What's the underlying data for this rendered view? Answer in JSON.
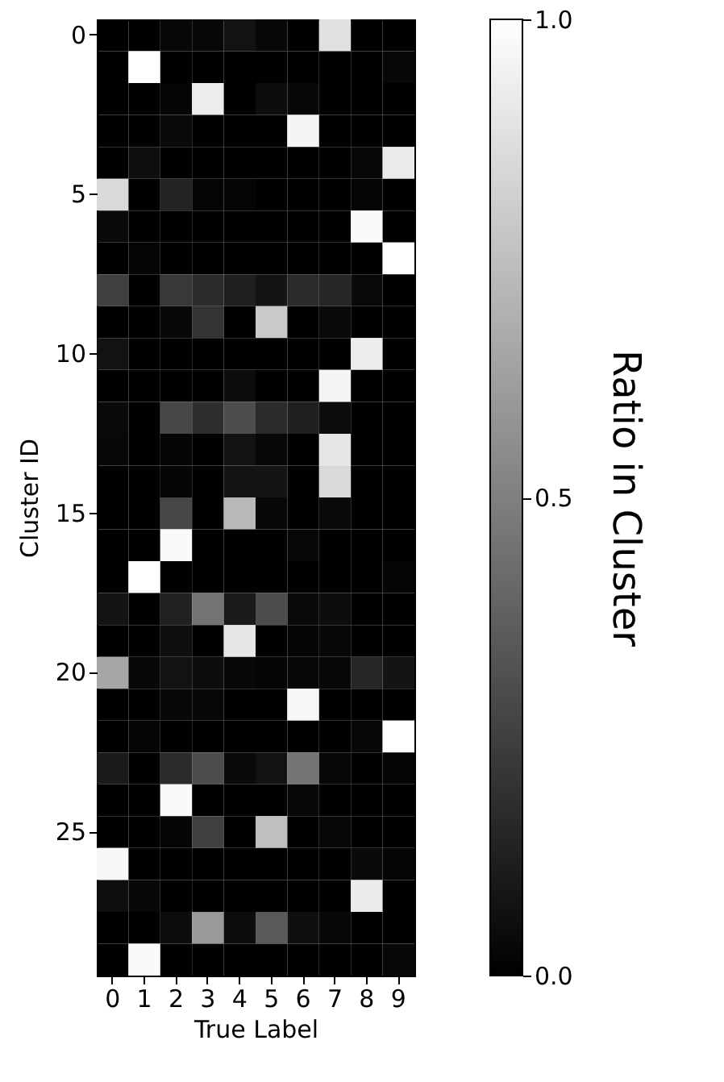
{
  "chart_data": {
    "type": "heatmap",
    "xlabel": "True Label",
    "ylabel": "Cluster ID",
    "clabel": "Ratio in Cluster",
    "categories": [
      "0",
      "1",
      "2",
      "3",
      "4",
      "5",
      "6",
      "7",
      "8",
      "9"
    ],
    "y_categories": [
      "0",
      null,
      null,
      null,
      null,
      "5",
      null,
      null,
      null,
      null,
      "10",
      null,
      null,
      null,
      null,
      "15",
      null,
      null,
      null,
      null,
      "20",
      null,
      null,
      null,
      null,
      "25",
      null,
      null,
      null,
      null
    ],
    "clim": [
      0,
      1
    ],
    "cticks": [
      {
        "value": 0,
        "label": "0.0"
      },
      {
        "value": 0.5,
        "label": "0.5"
      },
      {
        "value": 1,
        "label": "1.0"
      }
    ],
    "cells": [
      [
        0,
        0,
        0.03,
        0.03,
        0.07,
        0.03,
        0,
        0.88,
        0,
        0
      ],
      [
        0,
        1,
        0,
        0,
        0,
        0,
        0,
        0,
        0,
        0.03
      ],
      [
        0,
        0,
        0.02,
        0.93,
        0,
        0.05,
        0.03,
        0,
        0,
        0
      ],
      [
        0,
        0,
        0.04,
        0,
        0,
        0,
        0.96,
        0,
        0,
        0
      ],
      [
        0,
        0.06,
        0,
        0,
        0,
        0,
        0,
        0,
        0.03,
        0.92
      ],
      [
        0.85,
        0,
        0.14,
        0.02,
        0.02,
        0,
        0,
        0,
        0.02,
        0
      ],
      [
        0.04,
        0,
        0,
        0,
        0,
        0,
        0,
        0,
        0.98,
        0
      ],
      [
        0,
        0.02,
        0,
        0,
        0,
        0,
        0,
        0,
        0,
        1
      ],
      [
        0.25,
        0,
        0.22,
        0.17,
        0.12,
        0.08,
        0.17,
        0.15,
        0.04,
        0
      ],
      [
        0,
        0,
        0.03,
        0.2,
        0,
        0.79,
        0,
        0.04,
        0,
        0
      ],
      [
        0.07,
        0,
        0,
        0,
        0,
        0,
        0,
        0,
        0.93,
        0
      ],
      [
        0,
        0,
        0,
        0,
        0.05,
        0,
        0,
        0.96,
        0,
        0
      ],
      [
        0.04,
        0,
        0.28,
        0.18,
        0.3,
        0.17,
        0.12,
        0.05,
        0,
        0
      ],
      [
        0.03,
        0,
        0.02,
        0,
        0.07,
        0.03,
        0,
        0.9,
        0,
        0
      ],
      [
        0,
        0,
        0.02,
        0,
        0.08,
        0.08,
        0,
        0.85,
        0,
        0
      ],
      [
        0,
        0,
        0.28,
        0,
        0.72,
        0.03,
        0,
        0.04,
        0,
        0
      ],
      [
        0,
        0,
        0.98,
        0,
        0,
        0,
        0.03,
        0,
        0,
        0
      ],
      [
        0,
        1,
        0,
        0,
        0,
        0,
        0,
        0,
        0,
        0.02
      ],
      [
        0.08,
        0,
        0.13,
        0.45,
        0.1,
        0.3,
        0.04,
        0.05,
        0,
        0
      ],
      [
        0,
        0,
        0.06,
        0,
        0.9,
        0,
        0.02,
        0.03,
        0,
        0
      ],
      [
        0.65,
        0.03,
        0.07,
        0.05,
        0.03,
        0.02,
        0.03,
        0.03,
        0.15,
        0.08
      ],
      [
        0,
        0,
        0.03,
        0.03,
        0,
        0,
        0.97,
        0,
        0,
        0
      ],
      [
        0,
        0.02,
        0,
        0,
        0,
        0,
        0,
        0,
        0.03,
        1
      ],
      [
        0.1,
        0,
        0.17,
        0.3,
        0.04,
        0.07,
        0.46,
        0.03,
        0,
        0.02
      ],
      [
        0,
        0,
        0.98,
        0,
        0,
        0,
        0.03,
        0,
        0,
        0
      ],
      [
        0,
        0,
        0.02,
        0.25,
        0,
        0.75,
        0,
        0.03,
        0,
        0
      ],
      [
        0.97,
        0,
        0,
        0,
        0,
        0,
        0,
        0,
        0.04,
        0.02
      ],
      [
        0.06,
        0.03,
        0,
        0,
        0,
        0,
        0,
        0,
        0.92,
        0
      ],
      [
        0,
        0,
        0.05,
        0.6,
        0.05,
        0.35,
        0.06,
        0.03,
        0,
        0
      ],
      [
        0,
        0.98,
        0,
        0,
        0,
        0,
        0,
        0,
        0,
        0.03
      ]
    ]
  }
}
